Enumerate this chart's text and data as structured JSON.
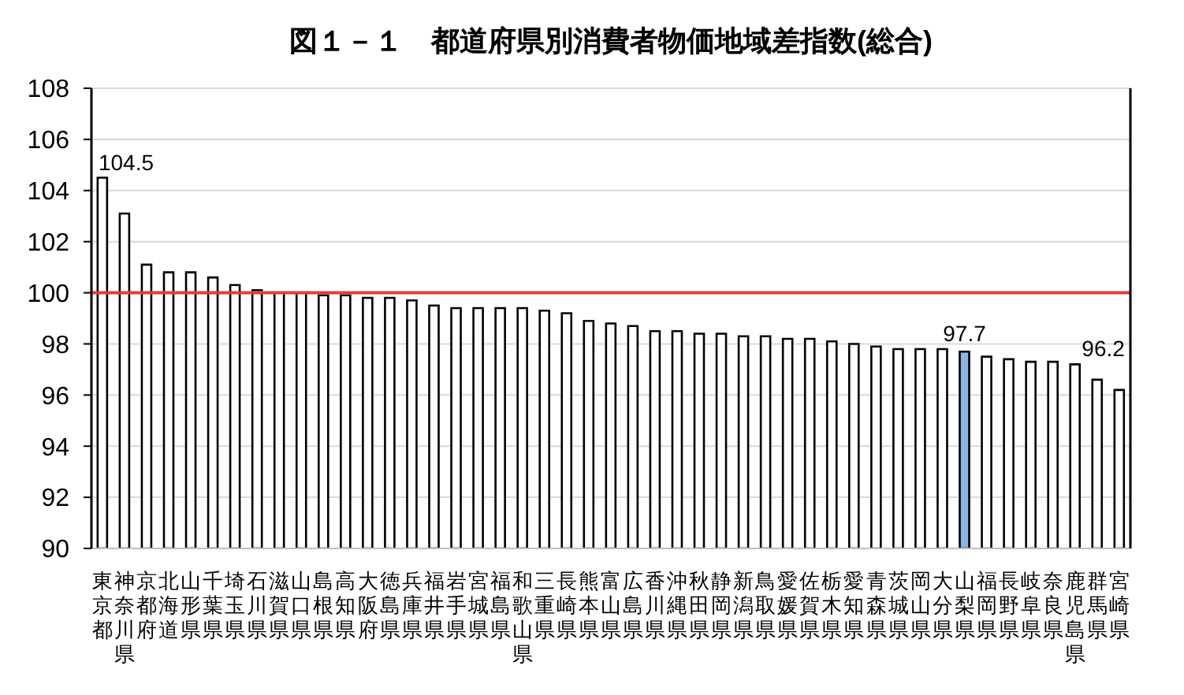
{
  "chart_data": {
    "type": "bar",
    "title": "図１－１　都道府県別消費者物価地域差指数(総合)",
    "categories": [
      "東京都",
      "神奈川県",
      "京都府",
      "北海道",
      "山形県",
      "千葉県",
      "埼玉県",
      "石川県",
      "滋賀県",
      "山口県",
      "島根県",
      "高知県",
      "大阪府",
      "徳島県",
      "兵庫県",
      "福井県",
      "岩手県",
      "宮城県",
      "福島県",
      "和歌山県",
      "三重県",
      "長崎県",
      "熊本県",
      "富山県",
      "広島県",
      "香川県",
      "沖縄県",
      "秋田県",
      "静岡県",
      "新潟県",
      "鳥取県",
      "愛媛県",
      "佐賀県",
      "栃木県",
      "愛知県",
      "青森県",
      "茨城県",
      "岡山県",
      "大分県",
      "山梨県",
      "福岡県",
      "長野県",
      "岐阜県",
      "奈良県",
      "鹿児島県",
      "群馬県",
      "宮崎県"
    ],
    "values": [
      104.5,
      103.1,
      101.1,
      100.8,
      100.8,
      100.6,
      100.3,
      100.1,
      100.0,
      100.0,
      99.9,
      99.9,
      99.8,
      99.8,
      99.7,
      99.5,
      99.4,
      99.4,
      99.4,
      99.4,
      99.3,
      99.2,
      98.9,
      98.8,
      98.7,
      98.5,
      98.5,
      98.4,
      98.4,
      98.3,
      98.3,
      98.2,
      98.2,
      98.1,
      98.0,
      97.9,
      97.8,
      97.8,
      97.8,
      97.7,
      97.5,
      97.4,
      97.3,
      97.3,
      97.2,
      96.6,
      96.2
    ],
    "colors": [
      "#ffffff",
      "#ffffff",
      "#ffffff",
      "#ffffff",
      "#ffffff",
      "#ffffff",
      "#ffffff",
      "#ffffff",
      "#ffffff",
      "#ffffff",
      "#ffffff",
      "#ffffff",
      "#ffffff",
      "#ffffff",
      "#ffffff",
      "#ffffff",
      "#ffffff",
      "#ffffff",
      "#ffffff",
      "#ffffff",
      "#ffffff",
      "#ffffff",
      "#ffffff",
      "#ffffff",
      "#ffffff",
      "#ffffff",
      "#ffffff",
      "#ffffff",
      "#ffffff",
      "#ffffff",
      "#ffffff",
      "#ffffff",
      "#ffffff",
      "#ffffff",
      "#ffffff",
      "#ffffff",
      "#ffffff",
      "#ffffff",
      "#ffffff",
      "#8db4e2",
      "#ffffff",
      "#ffffff",
      "#ffffff",
      "#ffffff",
      "#ffffff",
      "#ffffff",
      "#ffffff"
    ],
    "value_labels": [
      "104.5",
      null,
      null,
      null,
      null,
      null,
      null,
      null,
      null,
      null,
      null,
      null,
      null,
      null,
      null,
      null,
      null,
      null,
      null,
      null,
      null,
      null,
      null,
      null,
      null,
      null,
      null,
      null,
      null,
      null,
      null,
      null,
      null,
      null,
      null,
      null,
      null,
      null,
      null,
      "97.7",
      null,
      null,
      null,
      null,
      null,
      null,
      "96.2"
    ],
    "ylim": [
      90,
      108
    ],
    "yticks": [
      90,
      92,
      94,
      96,
      98,
      100,
      102,
      104,
      106,
      108
    ],
    "grid": "y",
    "ref_lines": [
      {
        "axis": "y",
        "value": 100,
        "color": "#e03c3c"
      }
    ]
  }
}
